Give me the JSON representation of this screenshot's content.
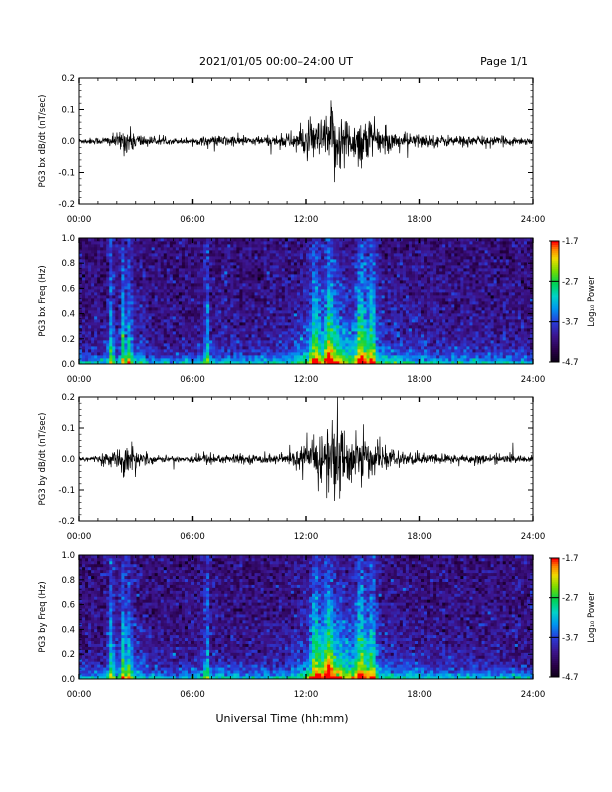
{
  "header": {
    "title": "2021/01/05  00:00–24:00 UT",
    "page": "Page 1/1"
  },
  "footer": {
    "xlabel": "Universal Time (hh:mm)"
  },
  "time_ticks": [
    "00:00",
    "06:00",
    "12:00",
    "18:00",
    "24:00"
  ],
  "colorbar": {
    "label": "Log₁₀ Power",
    "tick_labels": [
      "-1.7",
      "-2.7",
      "-3.7",
      "-4.7"
    ],
    "tick_values": [
      -1.7,
      -2.7,
      -3.7,
      -4.7
    ],
    "range": [
      -4.7,
      -1.7
    ]
  },
  "chart_data": [
    {
      "type": "line",
      "ylabel": "PG3 bx dB/dt (nT/sec)",
      "xlim": [
        0,
        24
      ],
      "ylim": [
        -0.2,
        0.2
      ],
      "ytick_labels": [
        "0.2",
        "0.1",
        "0.0",
        "-0.1",
        "-0.2"
      ],
      "ytick_values": [
        0.2,
        0.1,
        0.0,
        -0.1,
        -0.2
      ],
      "envelope_hours": [
        0,
        1,
        2,
        2.5,
        3,
        4,
        5,
        6,
        7,
        8,
        9,
        10,
        11,
        11.5,
        12,
        12.5,
        13,
        13.5,
        14,
        14.5,
        15,
        15.5,
        16,
        17,
        18,
        19,
        20,
        21,
        22,
        23,
        24
      ],
      "envelope_amplitude": [
        0.01,
        0.012,
        0.025,
        0.05,
        0.03,
        0.012,
        0.01,
        0.012,
        0.018,
        0.02,
        0.015,
        0.018,
        0.025,
        0.04,
        0.06,
        0.07,
        0.08,
        0.14,
        0.09,
        0.07,
        0.1,
        0.07,
        0.04,
        0.03,
        0.025,
        0.02,
        0.02,
        0.018,
        0.015,
        0.015,
        0.012
      ]
    },
    {
      "type": "heatmap",
      "ylabel": "PG3 bx Freq (Hz)",
      "xlim": [
        0,
        24
      ],
      "ylim": [
        0,
        1
      ],
      "ytick_labels": [
        "1.0",
        "0.8",
        "0.6",
        "0.4",
        "0.2",
        "0.0"
      ],
      "ytick_values": [
        1.0,
        0.8,
        0.6,
        0.4,
        0.2,
        0.0
      ],
      "zlim": [
        -4.7,
        -1.7
      ]
    },
    {
      "type": "line",
      "ylabel": "PG3 by dB/dt (nT/sec)",
      "xlim": [
        0,
        24
      ],
      "ylim": [
        -0.2,
        0.2
      ],
      "ytick_labels": [
        "0.2",
        "0.1",
        "0.0",
        "-0.1",
        "-0.2"
      ],
      "ytick_values": [
        0.2,
        0.1,
        0.0,
        -0.1,
        -0.2
      ],
      "envelope_hours": [
        0,
        1,
        2,
        2.5,
        3,
        4,
        5,
        6,
        7,
        8,
        9,
        10,
        11,
        11.5,
        12,
        12.5,
        13,
        13.5,
        14,
        14.5,
        15,
        15.5,
        16,
        17,
        18,
        19,
        20,
        21,
        22,
        23,
        24
      ],
      "envelope_amplitude": [
        0.01,
        0.012,
        0.03,
        0.06,
        0.035,
        0.012,
        0.01,
        0.015,
        0.02,
        0.018,
        0.014,
        0.016,
        0.02,
        0.03,
        0.05,
        0.08,
        0.12,
        0.17,
        0.1,
        0.08,
        0.09,
        0.06,
        0.035,
        0.025,
        0.02,
        0.018,
        0.018,
        0.016,
        0.014,
        0.014,
        0.012
      ]
    },
    {
      "type": "heatmap",
      "ylabel": "PG3 by Freq (Hz)",
      "xlim": [
        0,
        24
      ],
      "ylim": [
        0,
        1
      ],
      "ytick_labels": [
        "1.0",
        "0.8",
        "0.6",
        "0.4",
        "0.2",
        "0.0"
      ],
      "ytick_values": [
        1.0,
        0.8,
        0.6,
        0.4,
        0.2,
        0.0
      ],
      "zlim": [
        -4.7,
        -1.7
      ]
    }
  ]
}
